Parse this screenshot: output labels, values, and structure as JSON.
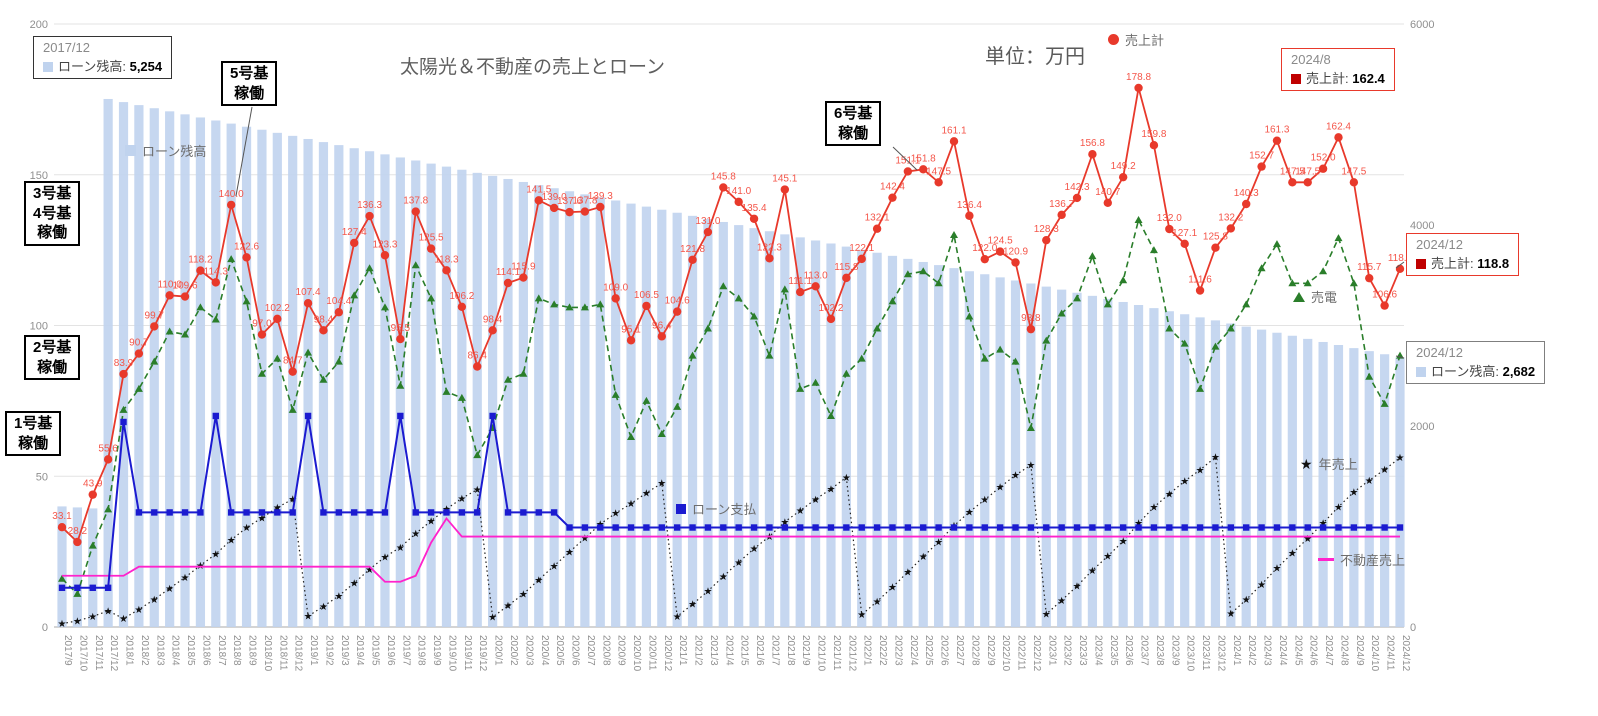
{
  "title": "太陽光＆不動産の売上とローン",
  "unit_label": "単位：万円",
  "legend": {
    "loan_balance": "ローン残高",
    "sales_total": "売上計",
    "solar": "売電",
    "annual_sales": "年売上",
    "loan_payment": "ローン支払",
    "real_estate": "不動産売上"
  },
  "colors": {
    "bar_loan_balance": "#c0d3ee",
    "sales_total_line": "#e8392b",
    "sales_label": "#f4564a",
    "solar_line": "#2a7e2a",
    "loan_payment_line": "#1b1bd0",
    "real_estate_line": "#ff22cc",
    "annual_sales_line": "#222222"
  },
  "callouts": [
    {
      "period": "2017/12",
      "label": "ローン残高:",
      "value": "5,254"
    },
    {
      "period": "2024/8",
      "label": "売上計:",
      "value": "162.4"
    },
    {
      "period": "2024/12",
      "label": "売上計:",
      "value": "118.8"
    },
    {
      "period": "2024/12",
      "label": "ローン残高:",
      "value": "2,682"
    }
  ],
  "annotations": {
    "units": [
      {
        "lines": [
          "1号基",
          "稼働"
        ]
      },
      {
        "lines": [
          "2号基",
          "稼働"
        ]
      },
      {
        "lines": [
          "3号基",
          "4号基",
          "稼働"
        ]
      },
      {
        "lines": [
          "5号基",
          "稼働"
        ]
      },
      {
        "lines": [
          "6号基",
          "稼働"
        ]
      }
    ]
  },
  "axes": {
    "left_ticks": [
      0,
      50,
      100,
      150,
      200
    ],
    "right_ticks": [
      0,
      2000,
      4000,
      6000
    ]
  },
  "chart_data": {
    "type": "combo",
    "left_range": [
      0,
      200
    ],
    "right_range": [
      0,
      6000
    ],
    "x": [
      "2017/9",
      "2017/10",
      "2017/11",
      "2017/12",
      "2018/1",
      "2018/2",
      "2018/3",
      "2018/4",
      "2018/5",
      "2018/6",
      "2018/7",
      "2018/8",
      "2018/9",
      "2018/10",
      "2018/11",
      "2018/12",
      "2019/1",
      "2019/2",
      "2019/3",
      "2019/4",
      "2019/5",
      "2019/6",
      "2019/7",
      "2019/8",
      "2019/9",
      "2019/10",
      "2019/11",
      "2019/12",
      "2020/1",
      "2020/2",
      "2020/3",
      "2020/4",
      "2020/5",
      "2020/6",
      "2020/7",
      "2020/8",
      "2020/9",
      "2020/10",
      "2020/11",
      "2020/12",
      "2021/1",
      "2021/2",
      "2021/3",
      "2021/4",
      "2021/5",
      "2021/6",
      "2021/7",
      "2021/8",
      "2021/9",
      "2021/10",
      "2021/11",
      "2021/12",
      "2022/1",
      "2022/2",
      "2022/3",
      "2022/4",
      "2022/5",
      "2022/6",
      "2022/7",
      "2022/8",
      "2022/9",
      "2022/10",
      "2022/11",
      "2022/12",
      "2023/1",
      "2023/2",
      "2023/3",
      "2023/4",
      "2023/5",
      "2023/6",
      "2023/7",
      "2023/8",
      "2023/9",
      "2023/10",
      "2023/11",
      "2023/12",
      "2024/1",
      "2024/2",
      "2024/3",
      "2024/4",
      "2024/5",
      "2024/6",
      "2024/7",
      "2024/8",
      "2024/9",
      "2024/10",
      "2024/11",
      "2024/12"
    ],
    "series": [
      {
        "key": "loan_balance",
        "name": "ローン残高",
        "type": "bar",
        "axis": "right",
        "values": [
          1200,
          1190,
          1180,
          5254,
          5223,
          5193,
          5162,
          5131,
          5101,
          5070,
          5040,
          5009,
          4978,
          4948,
          4917,
          4887,
          4856,
          4825,
          4795,
          4764,
          4734,
          4703,
          4672,
          4642,
          4611,
          4581,
          4550,
          4519,
          4489,
          4458,
          4428,
          4397,
          4366,
          4336,
          4305,
          4275,
          4244,
          4213,
          4183,
          4152,
          4122,
          4091,
          4060,
          4030,
          3999,
          3969,
          3938,
          3907,
          3877,
          3846,
          3816,
          3785,
          3754,
          3724,
          3693,
          3663,
          3632,
          3601,
          3571,
          3540,
          3510,
          3479,
          3448,
          3418,
          3387,
          3357,
          3326,
          3295,
          3265,
          3234,
          3204,
          3173,
          3142,
          3112,
          3081,
          3051,
          3020,
          2989,
          2959,
          2928,
          2898,
          2867,
          2836,
          2806,
          2775,
          2745,
          2714,
          2682
        ]
      },
      {
        "key": "sales_total",
        "name": "売上計",
        "type": "line",
        "axis": "left",
        "point_labels": true,
        "values": [
          33.1,
          28.2,
          43.9,
          55.6,
          83.9,
          90.7,
          99.7,
          110.0,
          109.6,
          118.2,
          114.3,
          140.0,
          122.6,
          97.0,
          102.2,
          84.7,
          107.4,
          98.4,
          104.4,
          127.4,
          136.3,
          123.3,
          95.5,
          137.8,
          125.5,
          118.3,
          106.2,
          86.4,
          98.4,
          114.1,
          115.9,
          141.5,
          139.0,
          137.6,
          137.8,
          139.3,
          109.0,
          95.1,
          106.5,
          96.4,
          104.6,
          121.8,
          131.0,
          145.8,
          141.0,
          135.4,
          122.3,
          145.1,
          111.1,
          113.0,
          102.2,
          115.8,
          122.1,
          132.1,
          142.4,
          151.1,
          151.8,
          147.5,
          161.1,
          136.4,
          122.0,
          124.5,
          120.9,
          98.8,
          128.3,
          136.7,
          142.3,
          156.8,
          140.7,
          149.2,
          178.8,
          159.8,
          132.0,
          127.1,
          111.6,
          125.8,
          132.2,
          140.3,
          152.7,
          161.3,
          147.5,
          147.5,
          152.0,
          162.4,
          147.5,
          115.7,
          106.6,
          118.8
        ]
      },
      {
        "key": "solar",
        "name": "売電",
        "type": "line-dashed",
        "axis": "left",
        "values": [
          16,
          11,
          27,
          39,
          72,
          79,
          88,
          98,
          97,
          106,
          102,
          122,
          108,
          84,
          89,
          72,
          91,
          82,
          88,
          110,
          119,
          106,
          80,
          120,
          109,
          78,
          76,
          57,
          66,
          82,
          84,
          109,
          107,
          106,
          106,
          107,
          77,
          63,
          75,
          64,
          73,
          90,
          99,
          113,
          109,
          103,
          90,
          112,
          79,
          81,
          70,
          84,
          89,
          99,
          108,
          117,
          118,
          114,
          130,
          103,
          89,
          92,
          88,
          66,
          95,
          104,
          109,
          123,
          107,
          115,
          135,
          125,
          99,
          94,
          79,
          93,
          99,
          107,
          119,
          127,
          114,
          114,
          118,
          129,
          114,
          83,
          74,
          90
        ]
      },
      {
        "key": "loan_payment",
        "name": "ローン支払",
        "type": "line",
        "axis": "left",
        "values": [
          13,
          13,
          13,
          13,
          68,
          38,
          38,
          38,
          38,
          38,
          70,
          38,
          38,
          38,
          38,
          38,
          70,
          38,
          38,
          38,
          38,
          38,
          70,
          38,
          38,
          38,
          38,
          38,
          70,
          38,
          38,
          38,
          38,
          33,
          33,
          33,
          33,
          33,
          33,
          33,
          33,
          33,
          33,
          33,
          33,
          33,
          33,
          33,
          33,
          33,
          33,
          33,
          33,
          33,
          33,
          33,
          33,
          33,
          33,
          33,
          33,
          33,
          33,
          33,
          33,
          33,
          33,
          33,
          33,
          33,
          33,
          33,
          33,
          33,
          33,
          33,
          33,
          33,
          33,
          33,
          33,
          33,
          33,
          33,
          33,
          33,
          33,
          33
        ]
      },
      {
        "key": "real_estate",
        "name": "不動産売上",
        "type": "line",
        "axis": "left",
        "values": [
          17,
          17,
          17,
          17,
          17,
          20,
          20,
          20,
          20,
          20,
          20,
          20,
          20,
          20,
          20,
          20,
          20,
          20,
          20,
          20,
          20,
          15,
          15,
          17,
          28,
          36,
          30,
          30,
          30,
          30,
          30,
          30,
          30,
          30,
          30,
          30,
          30,
          30,
          30,
          30,
          30,
          30,
          30,
          30,
          30,
          30,
          30,
          30,
          30,
          30,
          30,
          30,
          30,
          30,
          30,
          30,
          30,
          30,
          30,
          30,
          30,
          30,
          30,
          30,
          30,
          30,
          30,
          30,
          30,
          30,
          30,
          30,
          30,
          30,
          30,
          30,
          30,
          30,
          30,
          30,
          30,
          30,
          30,
          30,
          30,
          30,
          30,
          30
        ]
      },
      {
        "key": "annual_sales",
        "name": "年売上",
        "type": "line-dotted-star",
        "axis": "right",
        "derived_from": "sales_total",
        "derivation": "cumulative-sum-reset-each-calendar-year"
      }
    ]
  }
}
